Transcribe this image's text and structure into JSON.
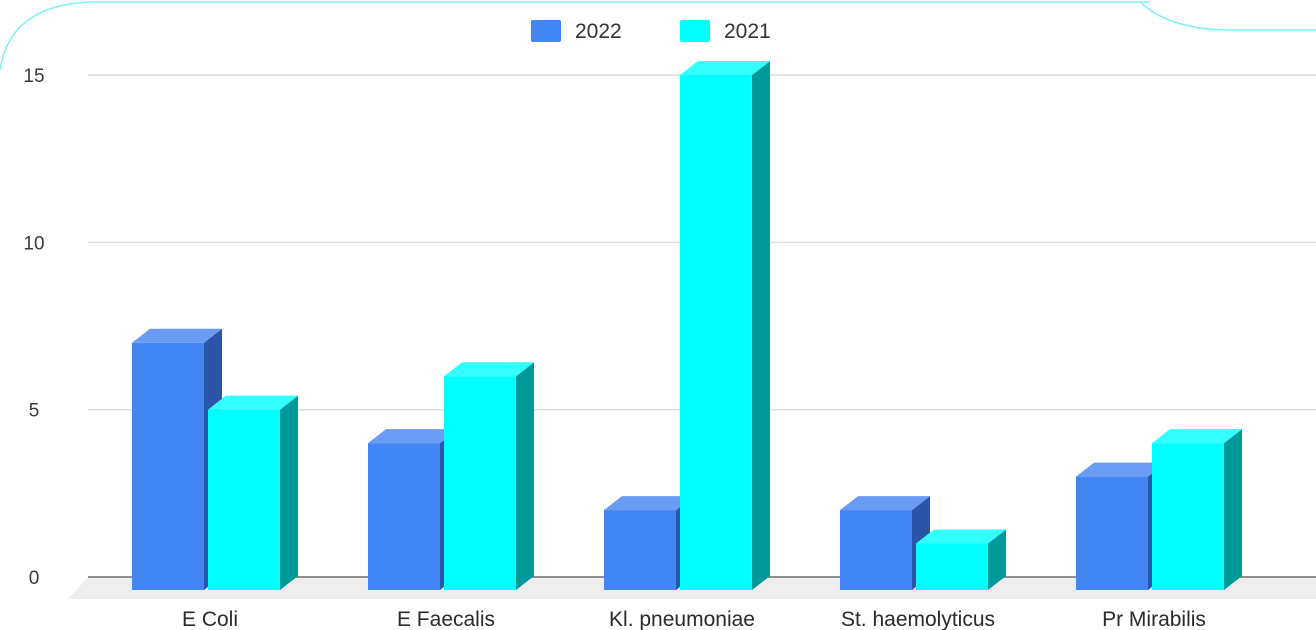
{
  "chart_data": {
    "type": "bar",
    "categories": [
      "E Coli",
      "E Faecalis",
      "Kl. pneumoniae",
      "St. haemolyticus",
      "Pr Mirabilis"
    ],
    "series": [
      {
        "name": "2022",
        "values": [
          7,
          4,
          2,
          2,
          3
        ],
        "color": "#4285f4",
        "side_color": "#2b55a8",
        "top_color": "#6a9cf6"
      },
      {
        "name": "2021",
        "values": [
          5,
          6,
          15,
          1,
          4
        ],
        "color": "#00ffff",
        "side_color": "#009999",
        "top_color": "#33ffff"
      }
    ],
    "y_ticks": [
      "0",
      "5",
      "10",
      "15"
    ],
    "ylim": [
      0,
      15
    ],
    "grid": true,
    "legend_position": "top-center",
    "style": "3d-bar"
  }
}
